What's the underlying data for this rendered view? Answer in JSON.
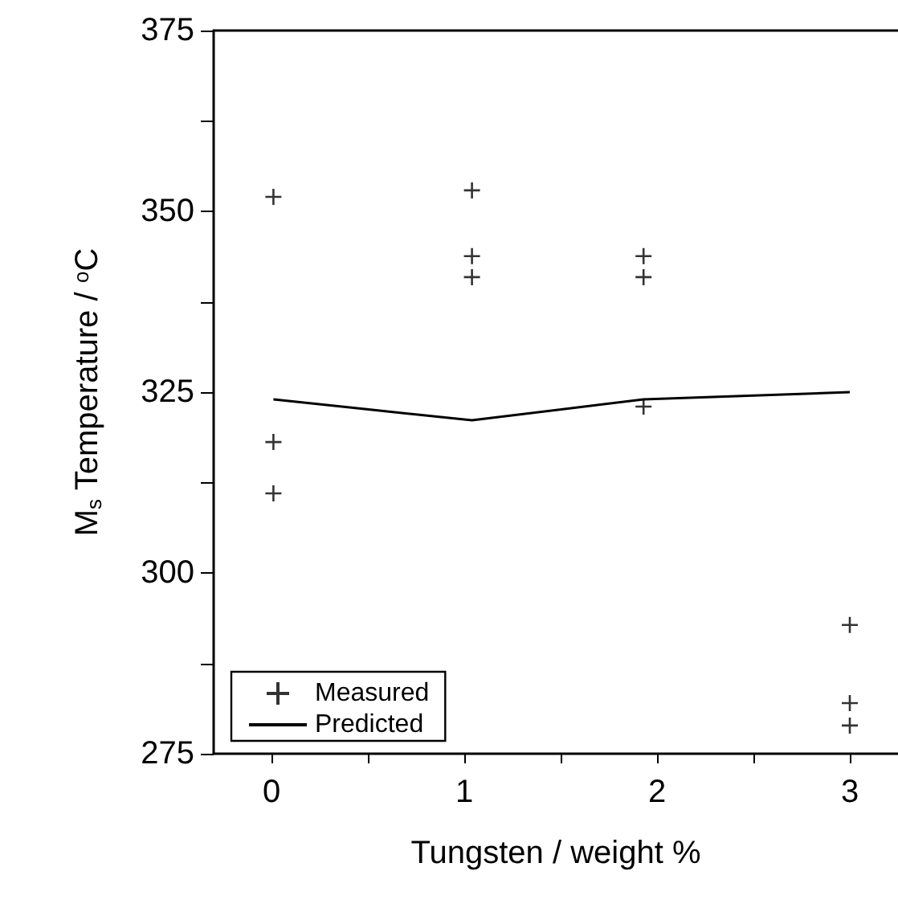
{
  "chart_data": {
    "type": "scatter",
    "xlabel": "Tungsten / weight %",
    "ylabel": "M$_{s}$ Temperature / $^{o}$C",
    "xlim": [
      -0.3,
      3.25
    ],
    "ylim": [
      275,
      375
    ],
    "xticks": [
      0,
      {
        "value": 0.5,
        "label": null
      },
      1,
      {
        "value": 1.5,
        "label": null
      },
      2,
      {
        "value": 2.5,
        "label": null
      },
      3
    ],
    "yticks": [
      275,
      {
        "value": 287.5,
        "label": null
      },
      300,
      {
        "value": 312.5,
        "label": null
      },
      325,
      {
        "value": 337.5,
        "label": null
      },
      350,
      {
        "value": 362.5,
        "label": null
      },
      375
    ],
    "grid": false,
    "legend": "bottom left",
    "series": [
      {
        "name": "Measured",
        "marker": "cross",
        "color": "#000000",
        "x": [
          0.01,
          0.01,
          0.01,
          1.04,
          1.04,
          1.04,
          1.93,
          1.93,
          1.93,
          3.0,
          3.0,
          3.0
        ],
        "values": [
          352.0,
          318.1,
          311.0,
          352.9,
          343.8,
          340.9,
          343.8,
          340.9,
          323.0,
          292.8,
          282.0,
          278.9
        ]
      },
      {
        "name": "Predicted",
        "type": "line",
        "marker": "none",
        "line_style": "solid",
        "color": "#000000",
        "x": [
          0.01,
          1.04,
          1.93,
          3.0
        ],
        "values": [
          324.0,
          321.1,
          324.0,
          325.0
        ]
      }
    ]
  }
}
